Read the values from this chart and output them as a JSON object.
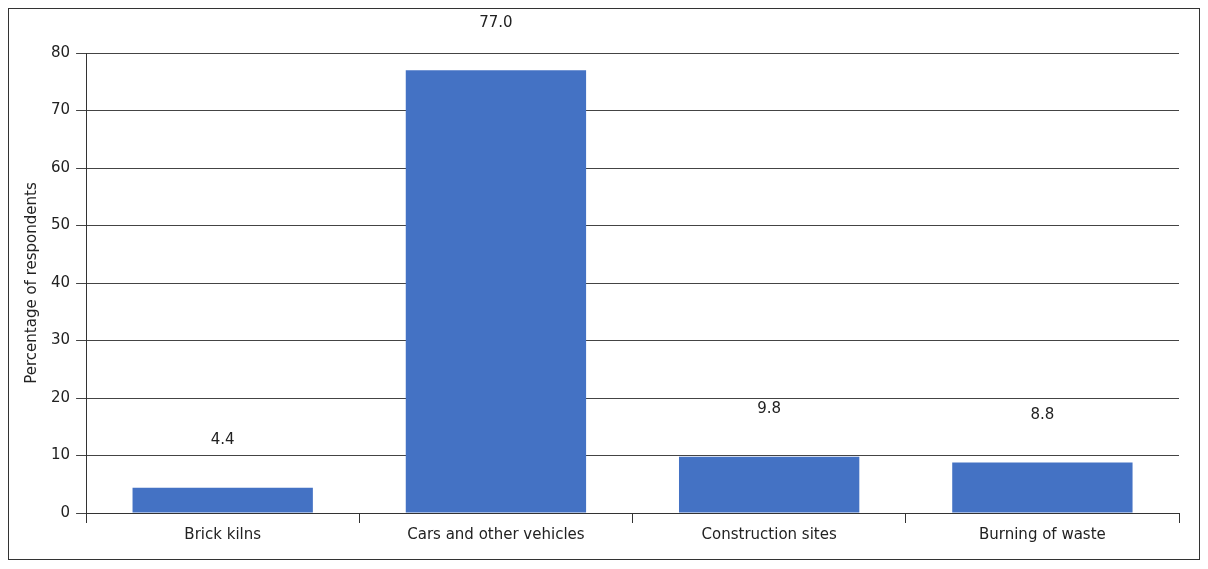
{
  "chart_data": {
    "type": "bar",
    "ylabel": "Percentage of respondents",
    "categories": [
      "Brick kilns",
      "Cars and other vehicles",
      "Construction sites",
      "Burning of waste"
    ],
    "values": [
      4.4,
      77.0,
      9.8,
      8.8
    ],
    "value_labels": [
      "4.4",
      "77.0",
      "9.8",
      "8.8"
    ],
    "color": "#4472c4",
    "ylim": [
      0,
      80
    ],
    "yticks": [
      0,
      10,
      20,
      30,
      40,
      50,
      60,
      70,
      80
    ],
    "grid": "y",
    "legend": false
  }
}
